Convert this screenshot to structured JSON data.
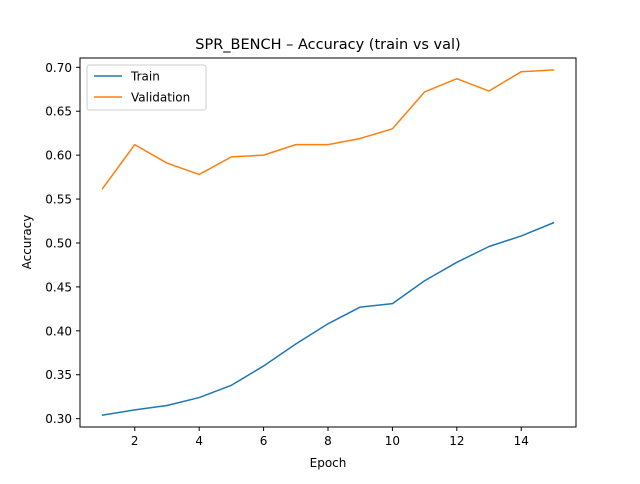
{
  "chart_data": {
    "type": "line",
    "title": "SPR_BENCH – Accuracy (train vs val)",
    "xlabel": "Epoch",
    "ylabel": "Accuracy",
    "xlim": [
      0.3,
      15.7
    ],
    "ylim": [
      0.2905,
      0.7106
    ],
    "xticks": [
      2,
      4,
      6,
      8,
      10,
      12,
      14
    ],
    "yticks": [
      0.3,
      0.35,
      0.4,
      0.45,
      0.5,
      0.55,
      0.6,
      0.65,
      0.7
    ],
    "xtick_labels": [
      "2",
      "4",
      "6",
      "8",
      "10",
      "12",
      "14"
    ],
    "ytick_labels": [
      "0.30",
      "0.35",
      "0.40",
      "0.45",
      "0.50",
      "0.55",
      "0.60",
      "0.65",
      "0.70"
    ],
    "x": [
      1,
      2,
      3,
      4,
      5,
      6,
      7,
      8,
      9,
      10,
      11,
      12,
      13,
      14,
      15
    ],
    "series": [
      {
        "name": "Train",
        "color": "#1f77b4",
        "values": [
          0.304,
          0.31,
          0.315,
          0.324,
          0.338,
          0.36,
          0.385,
          0.408,
          0.427,
          0.431,
          0.457,
          0.478,
          0.496,
          0.508,
          0.523
        ]
      },
      {
        "name": "Validation",
        "color": "#ff7f0e",
        "values": [
          0.562,
          0.612,
          0.591,
          0.578,
          0.598,
          0.6,
          0.612,
          0.612,
          0.619,
          0.63,
          0.672,
          0.687,
          0.673,
          0.695,
          0.697
        ]
      }
    ],
    "grid": false,
    "legend_position": "upper left"
  }
}
